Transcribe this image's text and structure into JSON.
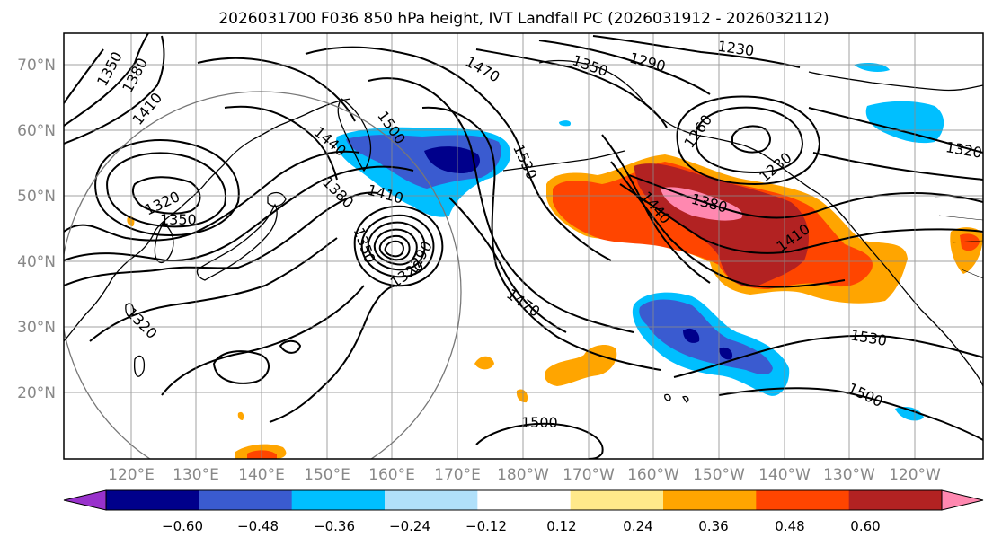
{
  "title": "2026031700 F036 850 hPa height, IVT Landfall PC (2026031912 - 2026032112)",
  "map": {
    "projection": "PlateCarree",
    "lon_range": [
      112,
      247
    ],
    "lat_range": [
      10,
      75
    ],
    "lat_labels": [
      "20°N",
      "30°N",
      "40°N",
      "50°N",
      "60°N",
      "70°N"
    ],
    "lon_labels": [
      "120°E",
      "130°E",
      "140°E",
      "150°E",
      "160°E",
      "170°E",
      "180°W",
      "170°W",
      "160°W",
      "150°W",
      "140°W",
      "130°W",
      "120°W"
    ],
    "gridlines": true,
    "coastlines": true,
    "radius_circle": true
  },
  "contours": {
    "variable": "850 hPa height",
    "labels": [
      "1350",
      "1380",
      "1410",
      "1470",
      "1350",
      "1290",
      "1230",
      "1260",
      "1320",
      "1500",
      "1440",
      "1530",
      "1380",
      "1410",
      "1230",
      "1320",
      "1350",
      "1380",
      "1350",
      "1320",
      "1290",
      "1320",
      "1470",
      "1380",
      "1440",
      "1410",
      "1530",
      "1500",
      "1500"
    ]
  },
  "colorbar": {
    "ticks": [
      "−0.60",
      "−0.48",
      "−0.36",
      "−0.24",
      "−0.12",
      "0.12",
      "0.24",
      "0.36",
      "0.48",
      "0.60"
    ],
    "colors": [
      "#9932CC",
      "#00008B",
      "#3A5BD0",
      "#00BFFF",
      "#B0E0FA",
      "#FFFFFF",
      "#FFE98A",
      "#FFA500",
      "#FF4500",
      "#B22222",
      "#FF88B0"
    ],
    "extend": "both"
  }
}
